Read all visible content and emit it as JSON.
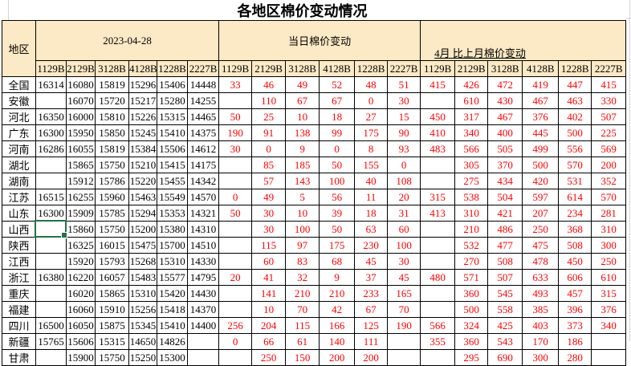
{
  "title": "各地区棉价变动情况",
  "table": {
    "corner_label": "地区",
    "groups": [
      {
        "label": "2023-04-28"
      },
      {
        "label": "当日棉价变动"
      },
      {
        "label": "4月 比上月棉价变动"
      }
    ],
    "grade_codes": [
      "1129B",
      "2129B",
      "3128B",
      "4128B",
      "1228B",
      "2227B"
    ],
    "rows": [
      {
        "region": "全国",
        "current": [
          "16314",
          "16080",
          "15819",
          "15296",
          "15406",
          "14448"
        ],
        "daily": [
          "33",
          "46",
          "49",
          "52",
          "48",
          "51"
        ],
        "monthly": [
          "415",
          "426",
          "472",
          "419",
          "447",
          "415"
        ]
      },
      {
        "region": "安徽",
        "current": [
          "",
          "16070",
          "15720",
          "15217",
          "15280",
          "14255"
        ],
        "daily": [
          "",
          "110",
          "67",
          "67",
          "0",
          "30"
        ],
        "monthly": [
          "",
          "610",
          "430",
          "467",
          "463",
          "330"
        ]
      },
      {
        "region": "河北",
        "current": [
          "16350",
          "16000",
          "15810",
          "15226",
          "15315",
          "14465"
        ],
        "daily": [
          "50",
          "25",
          "10",
          "18",
          "27",
          "15"
        ],
        "monthly": [
          "450",
          "317",
          "467",
          "376",
          "402",
          "507"
        ]
      },
      {
        "region": "广东",
        "current": [
          "16300",
          "15950",
          "15850",
          "15245",
          "15410",
          "14375"
        ],
        "daily": [
          "190",
          "91",
          "138",
          "99",
          "175",
          "90"
        ],
        "monthly": [
          "410",
          "340",
          "400",
          "445",
          "500",
          "225"
        ]
      },
      {
        "region": "河南",
        "current": [
          "16286",
          "16055",
          "15819",
          "15384",
          "15506",
          "14612"
        ],
        "daily": [
          "30",
          "0",
          "9",
          "0",
          "8",
          "93"
        ],
        "monthly": [
          "483",
          "566",
          "505",
          "499",
          "556",
          "569"
        ]
      },
      {
        "region": "湖北",
        "current": [
          "",
          "15865",
          "15750",
          "15210",
          "15415",
          "14175"
        ],
        "daily": [
          "",
          "85",
          "185",
          "50",
          "155",
          "0"
        ],
        "monthly": [
          "",
          "305",
          "370",
          "500",
          "570",
          "200"
        ]
      },
      {
        "region": "湖南",
        "current": [
          "",
          "15912",
          "15786",
          "15220",
          "15455",
          "14342"
        ],
        "daily": [
          "",
          "57",
          "143",
          "100",
          "40",
          "108"
        ],
        "monthly": [
          "",
          "275",
          "434",
          "420",
          "531",
          "352"
        ]
      },
      {
        "region": "江苏",
        "current": [
          "16515",
          "16255",
          "15960",
          "15463",
          "15549",
          "14570"
        ],
        "daily": [
          "0",
          "49",
          "5",
          "56",
          "11",
          "20"
        ],
        "monthly": [
          "315",
          "538",
          "504",
          "597",
          "614",
          "570"
        ]
      },
      {
        "region": "山东",
        "current": [
          "16300",
          "15909",
          "15785",
          "15294",
          "15353",
          "14321"
        ],
        "daily": [
          "50",
          "30",
          "10",
          "39",
          "18",
          "31"
        ],
        "monthly": [
          "413",
          "310",
          "421",
          "207",
          "234",
          "281"
        ]
      },
      {
        "region": "山西",
        "current": [
          "",
          "15860",
          "15750",
          "15200",
          "15380",
          "14310"
        ],
        "daily": [
          "",
          "30",
          "100",
          "50",
          "63",
          "60"
        ],
        "monthly": [
          "",
          "210",
          "486",
          "250",
          "368",
          "310"
        ]
      },
      {
        "region": "陕西",
        "current": [
          "",
          "16325",
          "16015",
          "15475",
          "15700",
          "14510"
        ],
        "daily": [
          "",
          "115",
          "97",
          "175",
          "230",
          "100"
        ],
        "monthly": [
          "",
          "532",
          "477",
          "475",
          "508",
          "300"
        ]
      },
      {
        "region": "江西",
        "current": [
          "",
          "15920",
          "15793",
          "15268",
          "15310",
          "14330"
        ],
        "daily": [
          "",
          "60",
          "83",
          "68",
          "45",
          "30"
        ],
        "monthly": [
          "",
          "270",
          "508",
          "478",
          "450",
          "250"
        ]
      },
      {
        "region": "浙江",
        "current": [
          "16380",
          "16220",
          "16057",
          "15483",
          "15577",
          "14795"
        ],
        "daily": [
          "20",
          "41",
          "32",
          "9",
          "37",
          "45"
        ],
        "monthly": [
          "480",
          "571",
          "507",
          "633",
          "606",
          "610"
        ]
      },
      {
        "region": "重庆",
        "current": [
          "",
          "16020",
          "15865",
          "15310",
          "15420",
          "14430"
        ],
        "daily": [
          "",
          "141",
          "210",
          "210",
          "233",
          "165"
        ],
        "monthly": [
          "",
          "360",
          "545",
          "493",
          "457",
          "315"
        ]
      },
      {
        "region": "福建",
        "current": [
          "",
          "16060",
          "15910",
          "15256",
          "15418",
          "14370"
        ],
        "daily": [
          "",
          "10",
          "70",
          "42",
          "67",
          "70"
        ],
        "monthly": [
          "",
          "500",
          "558",
          "385",
          "396",
          "376"
        ]
      },
      {
        "region": "四川",
        "current": [
          "16500",
          "16050",
          "15875",
          "15345",
          "15410",
          "14400"
        ],
        "daily": [
          "256",
          "204",
          "115",
          "166",
          "125",
          "190"
        ],
        "monthly": [
          "566",
          "324",
          "425",
          "403",
          "373",
          "340"
        ]
      },
      {
        "region": "新疆",
        "current": [
          "15765",
          "15606",
          "15315",
          "14650",
          "14826",
          ""
        ],
        "daily": [
          "0",
          "66",
          "61",
          "140",
          "111",
          ""
        ],
        "monthly": [
          "355",
          "360",
          "543",
          "170",
          "186",
          ""
        ]
      },
      {
        "region": "甘肃",
        "current": [
          "",
          "15900",
          "15750",
          "15250",
          "15300",
          ""
        ],
        "daily": [
          "",
          "250",
          "150",
          "200",
          "200",
          ""
        ],
        "monthly": [
          "",
          "295",
          "690",
          "300",
          "280",
          ""
        ]
      }
    ]
  },
  "selection": {
    "region": "陕西",
    "code": "1129B"
  },
  "colors": {
    "header_fill": "#fce9c5",
    "change_text": "#ff0000",
    "selection_green": "#217346",
    "table_border": "#000000",
    "gridline": "#d4d4d4"
  }
}
